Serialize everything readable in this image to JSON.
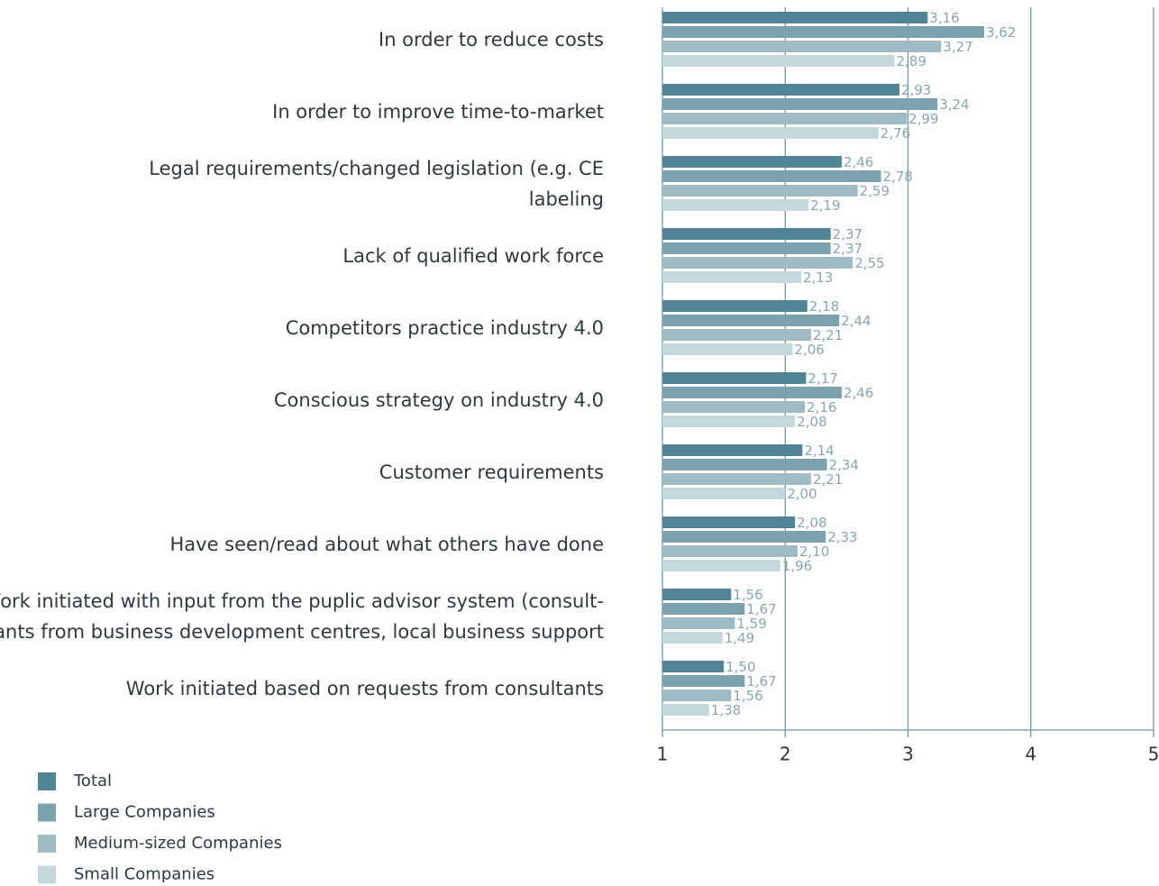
{
  "chart_data": {
    "type": "barh",
    "categories": [
      [
        "In order to reduce costs"
      ],
      [
        "In order to improve time-to-market"
      ],
      [
        "Legal requirements/changed legislation (e.g. CE",
        "labeling"
      ],
      [
        "Lack of qualified work force"
      ],
      [
        "Competitors practice industry 4.0"
      ],
      [
        "Conscious strategy on industry 4.0"
      ],
      [
        "Customer requirements"
      ],
      [
        "Have seen/read about what others have done"
      ],
      [
        "Work initiated with input from the puplic advisor system (consult-",
        "ants from business development centres, local business support"
      ],
      [
        "Work initiated based on requests from consultants"
      ]
    ],
    "series": [
      {
        "name": "Total",
        "color": "#4f8595",
        "values": [
          3.16,
          2.93,
          2.46,
          2.37,
          2.18,
          2.17,
          2.14,
          2.08,
          1.56,
          1.5
        ],
        "value_labels": [
          "3,16",
          "2,93",
          "2,46",
          "2,37",
          "2,18",
          "2,17",
          "2,14",
          "2,08",
          "1,56",
          "1,50"
        ]
      },
      {
        "name": "Large Companies",
        "color": "#7ba2ac",
        "values": [
          3.62,
          3.24,
          2.78,
          2.37,
          2.44,
          2.46,
          2.34,
          2.33,
          1.67,
          1.67
        ],
        "value_labels": [
          "3,62",
          "3,24",
          "2,78",
          "2,37",
          "2,44",
          "2,46",
          "2,34",
          "2,33",
          "1,67",
          "1,67"
        ]
      },
      {
        "name": "Medium-sized Companies",
        "color": "#9ebbc3",
        "values": [
          3.27,
          2.99,
          2.59,
          2.55,
          2.21,
          2.16,
          2.21,
          2.1,
          1.59,
          1.56
        ],
        "value_labels": [
          "3,27",
          "2,99",
          "2,59",
          "2,55",
          "2,21",
          "2,16",
          "2,21",
          "2,10",
          "1,59",
          "1,56"
        ]
      },
      {
        "name": "Small Companies",
        "color": "#c4d7dc",
        "values": [
          2.89,
          2.76,
          2.19,
          2.13,
          2.06,
          2.08,
          2.0,
          1.96,
          1.49,
          1.38
        ],
        "value_labels": [
          "2,89",
          "2,76",
          "2,19",
          "2,13",
          "2,06",
          "2,08",
          "2,00",
          "1,96",
          "1,49",
          "1,38"
        ]
      }
    ],
    "xlim": [
      1,
      5
    ],
    "xticks": [
      1,
      2,
      3,
      4,
      5
    ],
    "grid": true,
    "legend": "bottom-left"
  }
}
